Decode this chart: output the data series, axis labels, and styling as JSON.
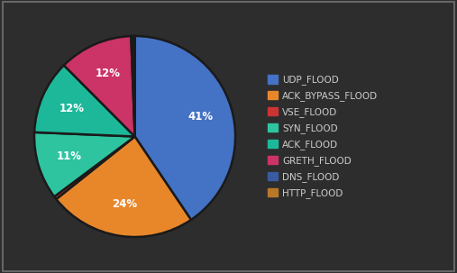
{
  "labels": [
    "UDP_FLOOD",
    "ACK_BYPASS_FLOOD",
    "VSE_FLOOD",
    "SYN_FLOOD",
    "ACK_FLOOD",
    "GRETH_FLOOD",
    "DNS_FLOOD",
    "HTTP_FLOOD"
  ],
  "values": [
    41,
    24,
    0.5,
    11,
    12,
    12,
    0.3,
    0.3
  ],
  "colors": [
    "#4472C4",
    "#E8872A",
    "#CC3333",
    "#2EC4A0",
    "#1DB89A",
    "#CC3366",
    "#3A5BA0",
    "#B87828"
  ],
  "bg_color": "#2d2d2d",
  "text_color": "#ffffff",
  "legend_text_color": "#cccccc",
  "border_color": "#1a1a1a",
  "label_fontsize": 8.5,
  "legend_fontsize": 7.5
}
